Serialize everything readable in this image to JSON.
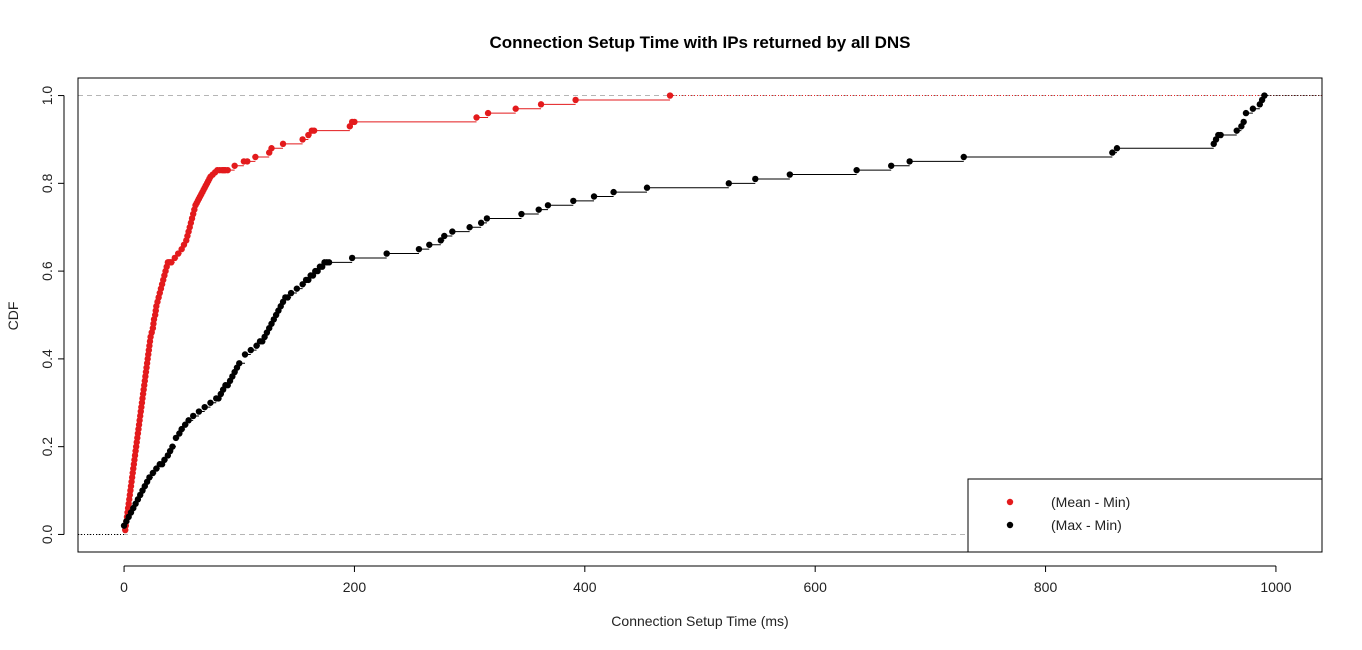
{
  "chart_data": {
    "type": "line",
    "title": "Connection Setup Time with IPs returned by all DNS",
    "xlabel": "Connection Setup Time (ms)",
    "ylabel": "CDF",
    "xlim": [
      -40,
      1040
    ],
    "ylim": [
      -0.04,
      1.04
    ],
    "x_ticks": [
      0,
      200,
      400,
      600,
      800,
      1000
    ],
    "y_ticks": [
      0.0,
      0.2,
      0.4,
      0.6,
      0.8,
      1.0
    ],
    "x_tick_labels": [
      "0",
      "200",
      "400",
      "600",
      "800",
      "1000"
    ],
    "y_tick_labels": [
      "0.0",
      "0.2",
      "0.4",
      "0.6",
      "0.8",
      "1.0"
    ],
    "reference_lines": [
      0.0,
      1.0
    ],
    "legend_position": "bottom-right",
    "series": [
      {
        "name": "(Mean - Min)",
        "color": "#e31a1c",
        "x": [
          1,
          1.5,
          2,
          2.5,
          3,
          3.5,
          4,
          4.5,
          5,
          5.5,
          6,
          6.5,
          7,
          7.5,
          8,
          8.5,
          9,
          9.5,
          10,
          10.5,
          11,
          11.5,
          12,
          12.5,
          13,
          13.5,
          14,
          14.5,
          15,
          15.5,
          16,
          16.5,
          17,
          17.5,
          18,
          18.5,
          19,
          19.5,
          20,
          20.5,
          21,
          21.5,
          22,
          22.5,
          23,
          24,
          25,
          25.5,
          26,
          27,
          27.5,
          28,
          29,
          30,
          31,
          32,
          33,
          34,
          35,
          36,
          37,
          38,
          39,
          40,
          41,
          44,
          47,
          50,
          52,
          54,
          55,
          56,
          57,
          58,
          59,
          60,
          61,
          62,
          63,
          64,
          65,
          66,
          67,
          68,
          69,
          70,
          71,
          72,
          73,
          74,
          75,
          77,
          79,
          81,
          83,
          85,
          86,
          87,
          88,
          90,
          96,
          104,
          107,
          114,
          126,
          128,
          138,
          155,
          160,
          163,
          165,
          196,
          198,
          200,
          306,
          316,
          340,
          362,
          392,
          474
        ],
        "y": [
          0.01,
          0.02,
          0.03,
          0.04,
          0.05,
          0.06,
          0.07,
          0.08,
          0.09,
          0.1,
          0.11,
          0.12,
          0.13,
          0.14,
          0.15,
          0.16,
          0.17,
          0.18,
          0.19,
          0.2,
          0.21,
          0.22,
          0.23,
          0.24,
          0.25,
          0.26,
          0.27,
          0.28,
          0.29,
          0.3,
          0.31,
          0.32,
          0.33,
          0.34,
          0.35,
          0.36,
          0.37,
          0.38,
          0.39,
          0.4,
          0.41,
          0.42,
          0.43,
          0.44,
          0.45,
          0.46,
          0.47,
          0.48,
          0.49,
          0.5,
          0.51,
          0.52,
          0.53,
          0.54,
          0.55,
          0.56,
          0.57,
          0.58,
          0.59,
          0.6,
          0.61,
          0.62,
          0.62,
          0.62,
          0.62,
          0.63,
          0.64,
          0.65,
          0.66,
          0.67,
          0.68,
          0.69,
          0.7,
          0.71,
          0.72,
          0.73,
          0.74,
          0.75,
          0.755,
          0.76,
          0.765,
          0.77,
          0.775,
          0.78,
          0.785,
          0.79,
          0.795,
          0.8,
          0.805,
          0.81,
          0.815,
          0.82,
          0.825,
          0.83,
          0.83,
          0.83,
          0.83,
          0.83,
          0.83,
          0.83,
          0.84,
          0.85,
          0.85,
          0.86,
          0.87,
          0.88,
          0.89,
          0.9,
          0.91,
          0.92,
          0.92,
          0.93,
          0.94,
          0.94,
          0.95,
          0.96,
          0.97,
          0.98,
          0.99,
          1.0
        ]
      },
      {
        "name": "(Max - Min)",
        "color": "#000000",
        "x": [
          0,
          2,
          4,
          6,
          8,
          10,
          12,
          14,
          16,
          18,
          20,
          22,
          25,
          28,
          31,
          33,
          35,
          38,
          40,
          42,
          45,
          48,
          50,
          53,
          56,
          60,
          65,
          70,
          75,
          80,
          82,
          84,
          86,
          88,
          90,
          92,
          94,
          96,
          98,
          100,
          105,
          110,
          115,
          118,
          120,
          122,
          124,
          126,
          128,
          130,
          132,
          134,
          136,
          138,
          140,
          142,
          145,
          150,
          155,
          158,
          160,
          162,
          164,
          166,
          168,
          170,
          172,
          174,
          176,
          178,
          198,
          228,
          256,
          265,
          275,
          278,
          285,
          300,
          310,
          315,
          345,
          360,
          368,
          390,
          408,
          425,
          454,
          525,
          548,
          578,
          636,
          666,
          682,
          729,
          858,
          862,
          946,
          948,
          950,
          952,
          966,
          970,
          972,
          974,
          980,
          986,
          988,
          990
        ],
        "y": [
          0.02,
          0.03,
          0.04,
          0.05,
          0.06,
          0.07,
          0.08,
          0.09,
          0.1,
          0.11,
          0.12,
          0.13,
          0.14,
          0.15,
          0.16,
          0.16,
          0.17,
          0.18,
          0.19,
          0.2,
          0.22,
          0.23,
          0.24,
          0.25,
          0.26,
          0.27,
          0.28,
          0.29,
          0.3,
          0.31,
          0.31,
          0.32,
          0.33,
          0.34,
          0.34,
          0.35,
          0.36,
          0.37,
          0.38,
          0.39,
          0.41,
          0.42,
          0.43,
          0.44,
          0.44,
          0.45,
          0.46,
          0.47,
          0.48,
          0.49,
          0.5,
          0.51,
          0.52,
          0.53,
          0.54,
          0.54,
          0.55,
          0.56,
          0.57,
          0.58,
          0.58,
          0.59,
          0.59,
          0.6,
          0.6,
          0.61,
          0.61,
          0.62,
          0.62,
          0.62,
          0.63,
          0.64,
          0.65,
          0.66,
          0.67,
          0.68,
          0.69,
          0.7,
          0.71,
          0.72,
          0.73,
          0.74,
          0.75,
          0.76,
          0.77,
          0.78,
          0.79,
          0.8,
          0.81,
          0.82,
          0.83,
          0.84,
          0.85,
          0.86,
          0.87,
          0.88,
          0.89,
          0.9,
          0.91,
          0.91,
          0.92,
          0.93,
          0.94,
          0.96,
          0.97,
          0.98,
          0.99,
          1.0
        ]
      }
    ]
  }
}
